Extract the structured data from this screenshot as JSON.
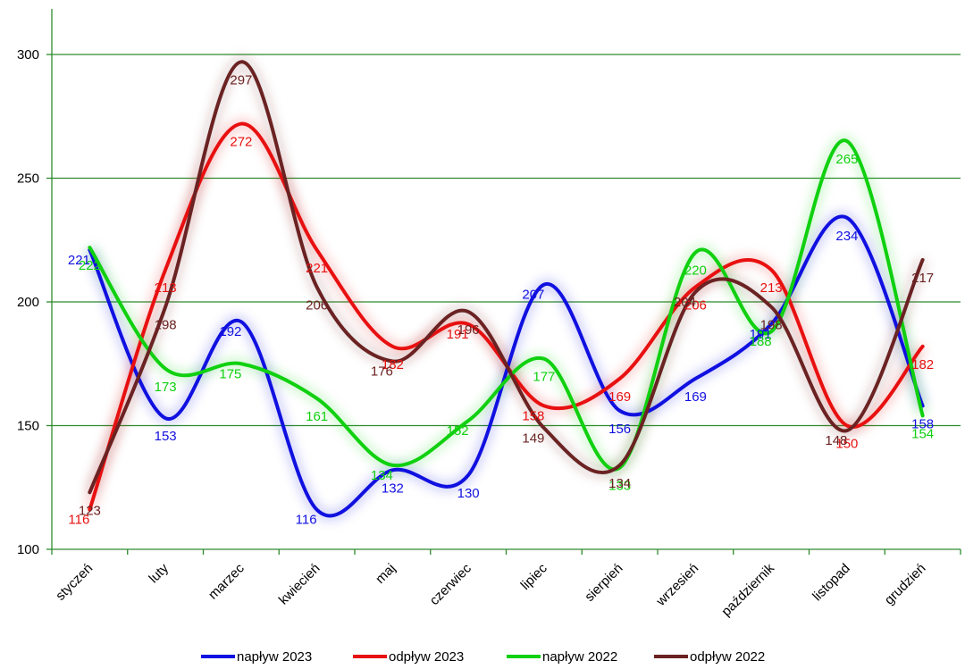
{
  "chart_data": {
    "type": "line",
    "categories": [
      "styczeń",
      "luty",
      "marzec",
      "kwiecień",
      "maj",
      "czerwiec",
      "lipiec",
      "sierpień",
      "wrzesień",
      "październik",
      "listopad",
      "grudzień"
    ],
    "ylim": [
      100,
      310
    ],
    "yticks": [
      100,
      150,
      200,
      250,
      300
    ],
    "grid": true,
    "legend_position": "bottom",
    "series": [
      {
        "name": "napływ 2023",
        "color": "#1010e0",
        "values": [
          221,
          153,
          192,
          116,
          132,
          130,
          207,
          156,
          169,
          191,
          234,
          158
        ]
      },
      {
        "name": "odpływ 2023",
        "color": "#e81010",
        "values": [
          116,
          213,
          272,
          221,
          182,
          191,
          158,
          169,
          206,
          213,
          150,
          182
        ]
      },
      {
        "name": "napływ 2022",
        "color": "#10d010",
        "values": [
          222,
          173,
          175,
          161,
          134,
          152,
          177,
          133,
          220,
          188,
          265,
          154
        ]
      },
      {
        "name": "odpływ 2022",
        "color": "#6b2222",
        "values": [
          123,
          198,
          297,
          206,
          176,
          196,
          149,
          134,
          204,
          198,
          148,
          217
        ]
      }
    ],
    "labels": [
      [
        [
          -12,
          16
        ],
        [
          0,
          25
        ],
        [
          -12,
          16
        ],
        [
          -12,
          16
        ],
        [
          0,
          25
        ],
        [
          0,
          25
        ],
        [
          -12,
          16
        ],
        [
          0,
          25
        ],
        [
          0,
          25
        ],
        [
          -12,
          16
        ],
        [
          0,
          25
        ],
        [
          0,
          25
        ]
      ],
      [
        [
          -12,
          16
        ],
        [
          0,
          25
        ],
        [
          0,
          25
        ],
        [
          0,
          25
        ],
        [
          0,
          25
        ],
        [
          -12,
          16
        ],
        [
          -12,
          16
        ],
        [
          0,
          25
        ],
        [
          0,
          25
        ],
        [
          0,
          25
        ],
        [
          0,
          25
        ],
        [
          0,
          25
        ]
      ],
      [
        [
          0,
          25
        ],
        [
          0,
          25
        ],
        [
          -12,
          16
        ],
        [
          0,
          25
        ],
        [
          -12,
          16
        ],
        [
          -12,
          16
        ],
        [
          0,
          25
        ],
        [
          0,
          25
        ],
        [
          0,
          25
        ],
        [
          -12,
          16
        ],
        [
          0,
          25
        ],
        [
          0,
          25
        ]
      ],
      [
        [
          0,
          25
        ],
        [
          0,
          25
        ],
        [
          0,
          25
        ],
        [
          0,
          25
        ],
        [
          -12,
          16
        ],
        [
          0,
          25
        ],
        [
          -12,
          16
        ],
        [
          0,
          25
        ],
        [
          -12,
          16
        ],
        [
          0,
          25
        ],
        [
          -12,
          16
        ],
        [
          0,
          25
        ]
      ]
    ]
  }
}
